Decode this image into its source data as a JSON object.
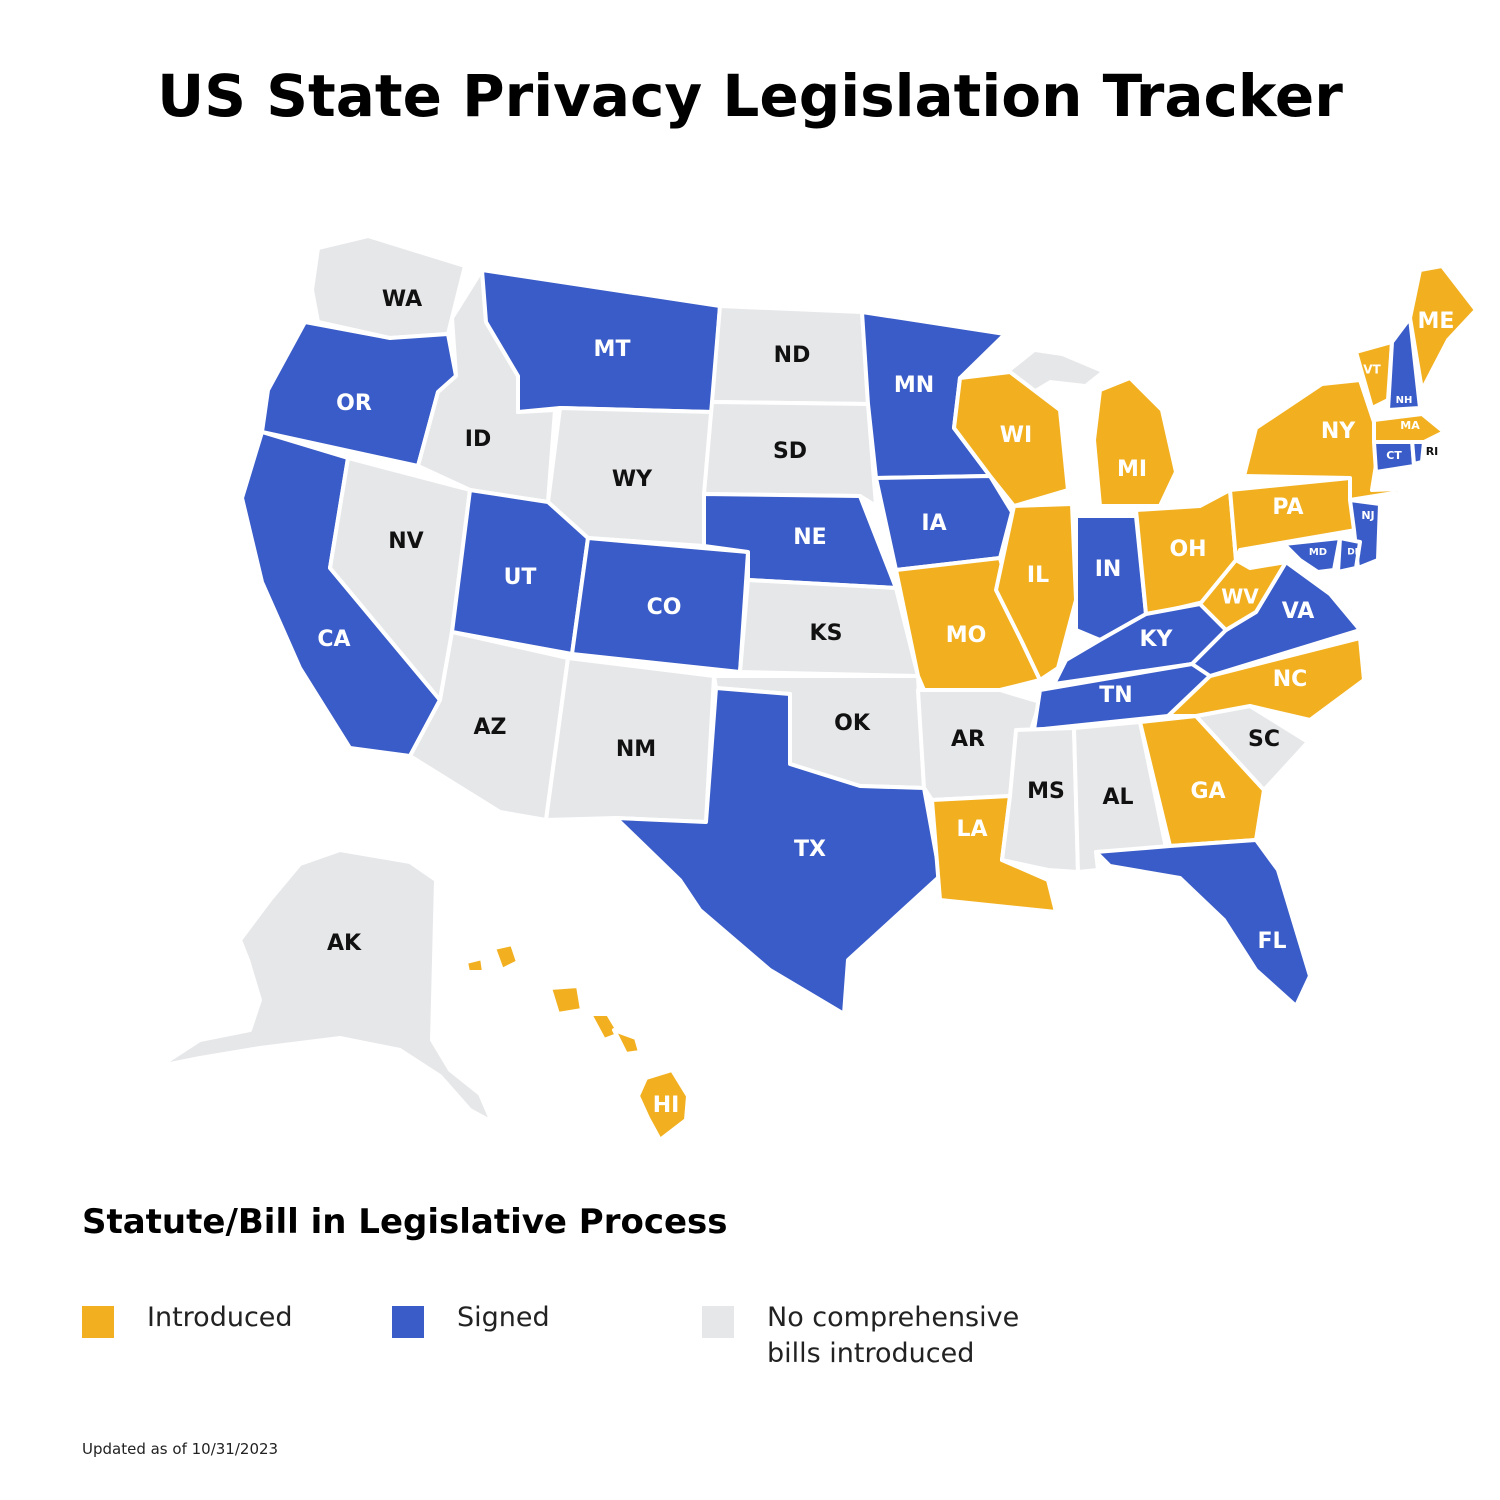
{
  "title": "US State Privacy Legislation Tracker",
  "colors": {
    "introduced": "#F2B021",
    "signed": "#3A5CC8",
    "none": "#E6E7E9",
    "label_dark": "#111111",
    "label_light": "#ffffff"
  },
  "legend": {
    "title": "Statute/Bill in Legislative Process",
    "items": [
      {
        "status": "introduced",
        "label": "Introduced"
      },
      {
        "status": "signed",
        "label": "Signed"
      },
      {
        "status": "none",
        "label": "No comprehensive\nbills introduced"
      }
    ]
  },
  "states": [
    {
      "code": "WA",
      "status": "none"
    },
    {
      "code": "OR",
      "status": "signed"
    },
    {
      "code": "CA",
      "status": "signed"
    },
    {
      "code": "ID",
      "status": "none"
    },
    {
      "code": "NV",
      "status": "none"
    },
    {
      "code": "MT",
      "status": "signed"
    },
    {
      "code": "WY",
      "status": "none"
    },
    {
      "code": "UT",
      "status": "signed"
    },
    {
      "code": "AZ",
      "status": "none"
    },
    {
      "code": "CO",
      "status": "signed"
    },
    {
      "code": "NM",
      "status": "none"
    },
    {
      "code": "ND",
      "status": "none"
    },
    {
      "code": "SD",
      "status": "none"
    },
    {
      "code": "NE",
      "status": "signed"
    },
    {
      "code": "KS",
      "status": "none"
    },
    {
      "code": "OK",
      "status": "none"
    },
    {
      "code": "TX",
      "status": "signed"
    },
    {
      "code": "MN",
      "status": "signed"
    },
    {
      "code": "IA",
      "status": "signed"
    },
    {
      "code": "MO",
      "status": "introduced"
    },
    {
      "code": "AR",
      "status": "none"
    },
    {
      "code": "LA",
      "status": "introduced"
    },
    {
      "code": "WI",
      "status": "introduced"
    },
    {
      "code": "IL",
      "status": "introduced"
    },
    {
      "code": "MI",
      "status": "introduced"
    },
    {
      "code": "IN",
      "status": "signed"
    },
    {
      "code": "OH",
      "status": "introduced"
    },
    {
      "code": "KY",
      "status": "signed"
    },
    {
      "code": "TN",
      "status": "signed"
    },
    {
      "code": "MS",
      "status": "none"
    },
    {
      "code": "AL",
      "status": "none"
    },
    {
      "code": "GA",
      "status": "introduced"
    },
    {
      "code": "FL",
      "status": "signed"
    },
    {
      "code": "SC",
      "status": "none"
    },
    {
      "code": "NC",
      "status": "introduced"
    },
    {
      "code": "VA",
      "status": "signed"
    },
    {
      "code": "WV",
      "status": "introduced"
    },
    {
      "code": "PA",
      "status": "introduced"
    },
    {
      "code": "NY",
      "status": "introduced"
    },
    {
      "code": "NJ",
      "status": "signed"
    },
    {
      "code": "DE",
      "status": "signed"
    },
    {
      "code": "MD",
      "status": "signed"
    },
    {
      "code": "CT",
      "status": "signed"
    },
    {
      "code": "RI",
      "status": "signed"
    },
    {
      "code": "MA",
      "status": "introduced"
    },
    {
      "code": "VT",
      "status": "introduced"
    },
    {
      "code": "NH",
      "status": "signed"
    },
    {
      "code": "ME",
      "status": "introduced"
    },
    {
      "code": "AK",
      "status": "none"
    },
    {
      "code": "HI",
      "status": "introduced"
    }
  ],
  "footnote": "Updated as of 10/31/2023"
}
